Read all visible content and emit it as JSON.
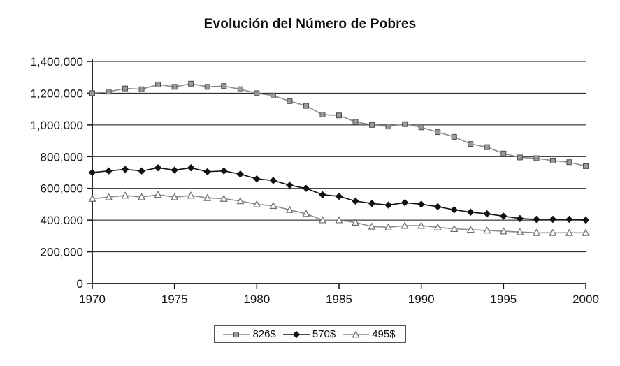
{
  "chart_data": {
    "type": "line",
    "title": "Evolución del Número de Pobres",
    "xlabel": "",
    "ylabel": "",
    "x": [
      1970,
      1971,
      1972,
      1973,
      1974,
      1975,
      1976,
      1977,
      1978,
      1979,
      1980,
      1981,
      1982,
      1983,
      1984,
      1985,
      1986,
      1987,
      1988,
      1989,
      1990,
      1991,
      1992,
      1993,
      1994,
      1995,
      1996,
      1997,
      1998,
      1999,
      2000
    ],
    "x_ticks": [
      1970,
      1975,
      1980,
      1985,
      1990,
      1995,
      2000
    ],
    "y_ticks": [
      0,
      200000,
      400000,
      600000,
      800000,
      1000000,
      1200000,
      1400000
    ],
    "ylim": [
      0,
      1400000
    ],
    "grid": "horizontal",
    "legend_position": "bottom",
    "series": [
      {
        "name": "826$",
        "marker": "square",
        "line_color": "#8c8c8c",
        "marker_fill": "#9a9a9a",
        "marker_stroke": "#4d4d4d",
        "values": [
          1200000,
          1210000,
          1230000,
          1225000,
          1255000,
          1240000,
          1260000,
          1240000,
          1245000,
          1225000,
          1200000,
          1185000,
          1150000,
          1120000,
          1065000,
          1060000,
          1020000,
          1000000,
          990000,
          1005000,
          985000,
          955000,
          925000,
          880000,
          860000,
          820000,
          795000,
          790000,
          775000,
          765000,
          740000
        ]
      },
      {
        "name": "570$",
        "marker": "diamond",
        "line_color": "#111111",
        "marker_fill": "#111111",
        "marker_stroke": "#111111",
        "values": [
          700000,
          710000,
          720000,
          710000,
          730000,
          715000,
          730000,
          705000,
          710000,
          690000,
          660000,
          650000,
          620000,
          600000,
          560000,
          550000,
          520000,
          505000,
          495000,
          510000,
          500000,
          485000,
          465000,
          450000,
          440000,
          425000,
          410000,
          405000,
          405000,
          405000,
          400000
        ]
      },
      {
        "name": "495$",
        "marker": "triangle-open",
        "line_color": "#8c8c8c",
        "marker_fill": "#ffffff",
        "marker_stroke": "#6b6b6b",
        "values": [
          535000,
          545000,
          555000,
          545000,
          560000,
          545000,
          555000,
          540000,
          535000,
          520000,
          500000,
          490000,
          465000,
          440000,
          400000,
          400000,
          385000,
          360000,
          355000,
          365000,
          365000,
          355000,
          345000,
          340000,
          335000,
          330000,
          325000,
          320000,
          320000,
          320000,
          320000
        ]
      }
    ],
    "axis_color": "#111111",
    "grid_color": "#111111"
  }
}
